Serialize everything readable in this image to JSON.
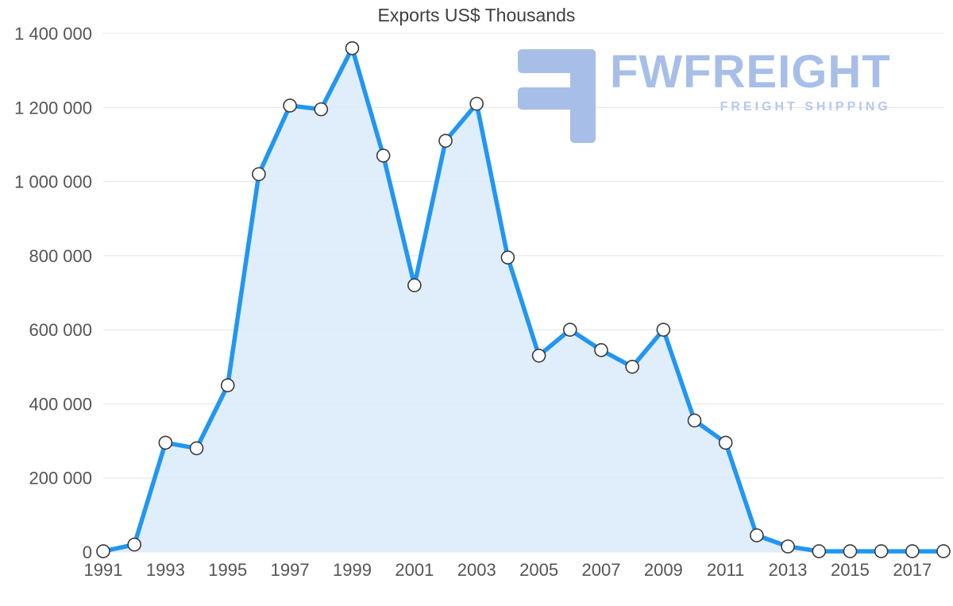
{
  "chart_data": {
    "type": "area",
    "title": "Exports US$ Thousands",
    "x": [
      1991,
      1992,
      1993,
      1994,
      1995,
      1996,
      1997,
      1998,
      1999,
      2000,
      2001,
      2002,
      2003,
      2004,
      2005,
      2006,
      2007,
      2008,
      2009,
      2010,
      2011,
      2012,
      2013,
      2014,
      2015,
      2016,
      2017,
      2018
    ],
    "values": [
      2000,
      20000,
      295000,
      280000,
      450000,
      1020000,
      1205000,
      1195000,
      1360000,
      1070000,
      720000,
      1110000,
      1210000,
      795000,
      530000,
      600000,
      545000,
      500000,
      600000,
      355000,
      295000,
      45000,
      15000,
      2000,
      2000,
      2000,
      2000,
      2000
    ],
    "ylim": [
      0,
      1400000
    ],
    "yticks": [
      0,
      200000,
      400000,
      600000,
      800000,
      1000000,
      1200000,
      1400000
    ],
    "ytick_labels": [
      "0",
      "200 000",
      "400 000",
      "600 000",
      "800 000",
      "1 000 000",
      "1 200 000",
      "1 400 000"
    ],
    "xtick_years": [
      1991,
      1993,
      1995,
      1997,
      1999,
      2001,
      2003,
      2005,
      2007,
      2009,
      2011,
      2013,
      2015,
      2017
    ],
    "xtick_labels": [
      "1991",
      "1993",
      "1995",
      "1997",
      "1999",
      "2001",
      "2003",
      "2005",
      "2007",
      "2009",
      "2011",
      "2013",
      "2015",
      "2017"
    ],
    "xlabel": "",
    "ylabel": "",
    "grid": "horizontal",
    "legend": "none",
    "line_color": "#2196f3",
    "area_fill_color": "#daebfb",
    "marker_fill": "#ffffff",
    "marker_stroke": "#3a3a3a",
    "grid_color": "#e4e4e4",
    "axis_text_color": "#555555",
    "title_color": "#3f3f3f"
  },
  "watermark": {
    "wordmark": "FWFREIGHT",
    "tagline": "FREIGHT SHIPPING",
    "wordmark_color": "#a7bfe8",
    "tagline_color": "#b7c9ec",
    "icon_color": "#a7bfe8"
  }
}
